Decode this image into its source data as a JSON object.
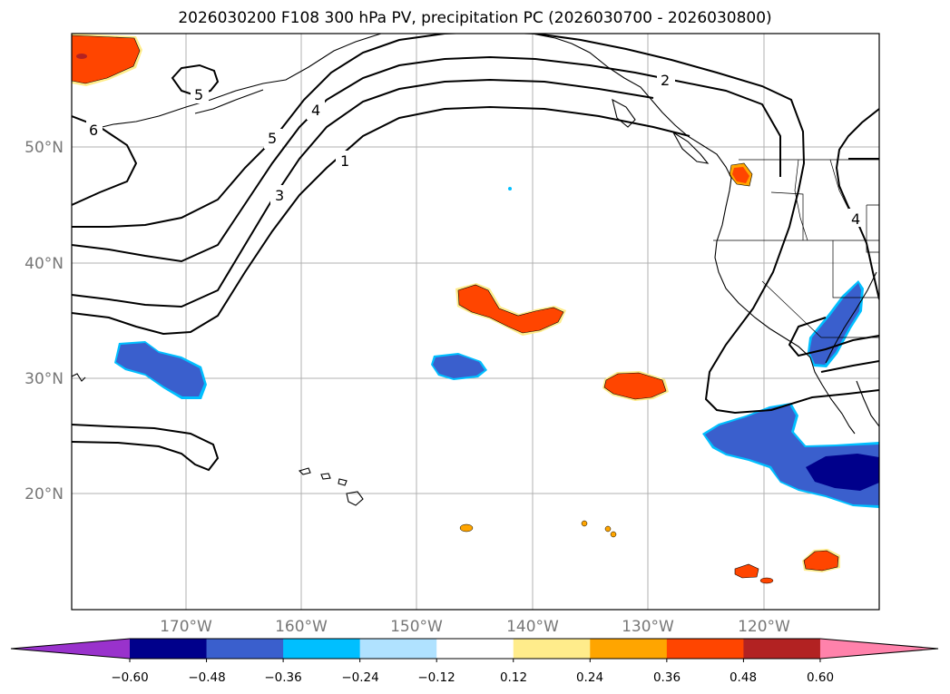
{
  "title": "2026030200 F108 300 hPa PV, precipitation PC (2026030700 - 2026030800)",
  "map": {
    "lat_labels": [
      "50°N",
      "40°N",
      "30°N",
      "20°N"
    ],
    "lon_labels": [
      "170°W",
      "160°W",
      "150°W",
      "140°W",
      "130°W",
      "120°W"
    ],
    "contour_labels": [
      "5",
      "4",
      "5",
      "3",
      "1",
      "6",
      "2",
      "4"
    ]
  },
  "colorbar": {
    "tick_labels": [
      "−0.60",
      "−0.48",
      "−0.36",
      "−0.24",
      "−0.12",
      "0.12",
      "0.24",
      "0.36",
      "0.48",
      "0.60"
    ],
    "colors": [
      "#9932CC",
      "#00008B",
      "#3A5FCD",
      "#00BFFF",
      "#B0E2FF",
      "#FFFFFF",
      "#FFEC8B",
      "#FFA500",
      "#FF4500",
      "#B22222",
      "#FF82AB"
    ]
  }
}
